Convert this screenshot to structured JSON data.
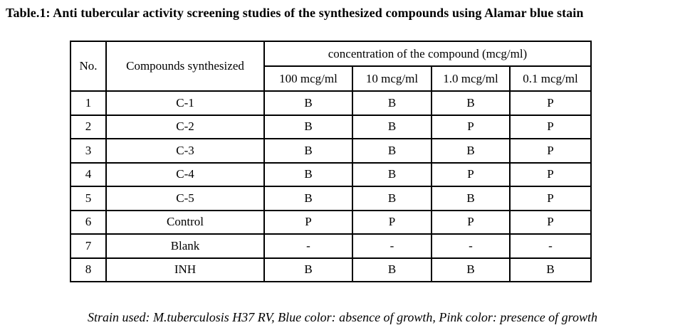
{
  "title": "Table.1: Anti tubercular activity screening studies of the synthesized compounds using Alamar blue stain",
  "table": {
    "header": {
      "no": "No.",
      "compounds": "Compounds synthesized",
      "concentration_group": "concentration of the compound (mcg/ml)",
      "concentrations": [
        "100 mcg/ml",
        "10 mcg/ml",
        "1.0 mcg/ml",
        "0.1 mcg/ml"
      ]
    },
    "rows": [
      {
        "no": "1",
        "compound": "C-1",
        "results": [
          "B",
          "B",
          "B",
          "P"
        ]
      },
      {
        "no": "2",
        "compound": "C-2",
        "results": [
          "B",
          "B",
          "P",
          "P"
        ]
      },
      {
        "no": "3",
        "compound": "C-3",
        "results": [
          "B",
          "B",
          "B",
          "P"
        ]
      },
      {
        "no": "4",
        "compound": "C-4",
        "results": [
          "B",
          "B",
          "P",
          "P"
        ]
      },
      {
        "no": "5",
        "compound": "C-5",
        "results": [
          "B",
          "B",
          "B",
          "P"
        ]
      },
      {
        "no": "6",
        "compound": "Control",
        "results": [
          "P",
          "P",
          "P",
          "P"
        ]
      },
      {
        "no": "7",
        "compound": "Blank",
        "results": [
          "-",
          "-",
          "-",
          "-"
        ]
      },
      {
        "no": "8",
        "compound": "INH",
        "results": [
          "B",
          "B",
          "B",
          "B"
        ]
      }
    ]
  },
  "footnote": "Strain used: M.tuberculosis H37 RV, Blue color: absence of growth, Pink color: presence of growth",
  "colors": {
    "text": "#000000",
    "border": "#000000",
    "background": "#ffffff"
  }
}
